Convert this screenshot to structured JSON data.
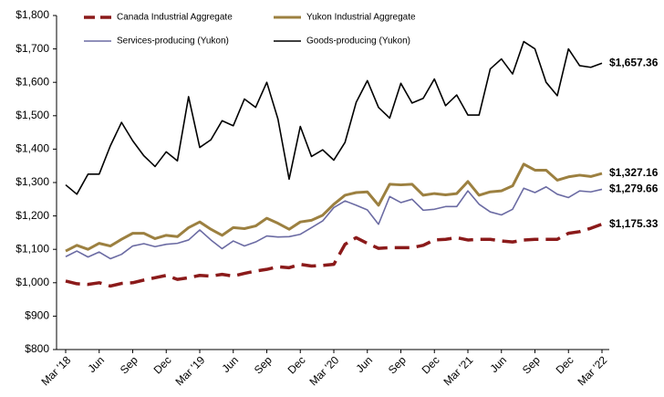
{
  "chart_data": {
    "type": "line",
    "categories": [
      "Mar '18",
      null,
      null,
      "Jun",
      null,
      null,
      "Sep",
      null,
      null,
      "Dec",
      null,
      null,
      "Mar '19",
      null,
      null,
      "Jun",
      null,
      null,
      "Sep",
      null,
      null,
      "Dec",
      null,
      null,
      "Mar '20",
      null,
      null,
      "Jun",
      null,
      null,
      "Sep",
      null,
      null,
      "Dec",
      null,
      null,
      "Mar '21",
      null,
      null,
      "Jun",
      null,
      null,
      "Sep",
      null,
      null,
      "Dec",
      null,
      null,
      "Mar '22"
    ],
    "series": [
      {
        "name": "Canada Industrial Aggregate",
        "color": "#8b1a1a",
        "dashed": true,
        "values": [
          1005,
          997,
          995,
          1000,
          990,
          998,
          1000,
          1008,
          1015,
          1022,
          1010,
          1015,
          1022,
          1020,
          1025,
          1020,
          1028,
          1035,
          1040,
          1048,
          1045,
          1055,
          1050,
          1052,
          1055,
          1115,
          1135,
          1118,
          1103,
          1105,
          1105,
          1105,
          1112,
          1128,
          1130,
          1135,
          1128,
          1130,
          1130,
          1125,
          1122,
          1128,
          1130,
          1130,
          1130,
          1148,
          1153,
          1163,
          1175.33
        ],
        "value_labels": [
          null,
          null,
          null,
          null,
          null,
          null,
          null,
          null,
          null,
          null,
          null,
          null,
          null,
          null,
          null,
          null,
          null,
          null,
          null,
          null,
          null,
          null,
          null,
          null,
          null,
          null,
          null,
          null,
          null,
          null,
          null,
          null,
          null,
          null,
          null,
          null,
          null,
          null,
          null,
          null,
          null,
          null,
          null,
          null,
          null,
          null,
          null,
          null,
          "$1,175.33"
        ]
      },
      {
        "name": "Yukon Industrial Aggregate",
        "color": "#9c8040",
        "dashed": false,
        "values": [
          1095,
          1112,
          1100,
          1118,
          1110,
          1130,
          1148,
          1148,
          1132,
          1142,
          1138,
          1165,
          1182,
          1160,
          1142,
          1165,
          1162,
          1170,
          1193,
          1178,
          1160,
          1182,
          1187,
          1202,
          1235,
          1262,
          1270,
          1272,
          1232,
          1295,
          1293,
          1295,
          1262,
          1267,
          1263,
          1267,
          1303,
          1262,
          1272,
          1275,
          1290,
          1355,
          1337,
          1337,
          1307,
          1317,
          1322,
          1318,
          1327.16
        ],
        "value_labels": [
          null,
          null,
          null,
          null,
          null,
          null,
          null,
          null,
          null,
          null,
          null,
          null,
          null,
          null,
          null,
          null,
          null,
          null,
          null,
          null,
          null,
          null,
          null,
          null,
          null,
          null,
          null,
          null,
          null,
          null,
          null,
          null,
          null,
          null,
          null,
          null,
          null,
          null,
          null,
          null,
          null,
          null,
          null,
          null,
          null,
          null,
          null,
          null,
          "$1,327.16"
        ]
      },
      {
        "name": "Services-producing (Yukon)",
        "color": "#6b6ba3",
        "dashed": false,
        "values": [
          1078,
          1095,
          1077,
          1092,
          1072,
          1085,
          1110,
          1117,
          1108,
          1115,
          1118,
          1128,
          1158,
          1128,
          1102,
          1125,
          1110,
          1122,
          1140,
          1137,
          1138,
          1145,
          1165,
          1185,
          1225,
          1245,
          1232,
          1218,
          1175,
          1258,
          1240,
          1250,
          1217,
          1220,
          1228,
          1228,
          1275,
          1235,
          1212,
          1203,
          1220,
          1283,
          1270,
          1287,
          1265,
          1255,
          1275,
          1272,
          1279.66
        ],
        "value_labels": [
          null,
          null,
          null,
          null,
          null,
          null,
          null,
          null,
          null,
          null,
          null,
          null,
          null,
          null,
          null,
          null,
          null,
          null,
          null,
          null,
          null,
          null,
          null,
          null,
          null,
          null,
          null,
          null,
          null,
          null,
          null,
          null,
          null,
          null,
          null,
          null,
          null,
          null,
          null,
          null,
          null,
          null,
          null,
          null,
          null,
          null,
          null,
          null,
          "$1,279.66"
        ]
      },
      {
        "name": "Goods-producing (Yukon)",
        "color": "#000000",
        "dashed": false,
        "values": [
          1293,
          1265,
          1325,
          1325,
          1410,
          1480,
          1425,
          1380,
          1348,
          1392,
          1365,
          1557,
          1405,
          1428,
          1485,
          1470,
          1550,
          1525,
          1600,
          1490,
          1310,
          1468,
          1378,
          1398,
          1367,
          1420,
          1540,
          1605,
          1525,
          1493,
          1597,
          1538,
          1552,
          1610,
          1530,
          1562,
          1502,
          1502,
          1640,
          1670,
          1625,
          1722,
          1700,
          1600,
          1560,
          1700,
          1650,
          1645,
          1657.36
        ],
        "value_labels": [
          null,
          null,
          null,
          null,
          null,
          null,
          null,
          null,
          null,
          null,
          null,
          null,
          null,
          null,
          null,
          null,
          null,
          null,
          null,
          null,
          null,
          null,
          null,
          null,
          null,
          null,
          null,
          null,
          null,
          null,
          null,
          null,
          null,
          null,
          null,
          null,
          null,
          null,
          null,
          null,
          null,
          null,
          null,
          null,
          null,
          null,
          null,
          null,
          "$1,657.36"
        ]
      }
    ],
    "ylim": [
      800,
      1800
    ],
    "yticks": [
      {
        "value": 800,
        "label": "$800"
      },
      {
        "value": 900,
        "label": "$900"
      },
      {
        "value": 1000,
        "label": "$1,000"
      },
      {
        "value": 1100,
        "label": "$1,100"
      },
      {
        "value": 1200,
        "label": "$1,200"
      },
      {
        "value": 1300,
        "label": "$1,300"
      },
      {
        "value": 1400,
        "label": "$1,400"
      },
      {
        "value": 1500,
        "label": "$1,500"
      },
      {
        "value": 1600,
        "label": "$1,600"
      },
      {
        "value": 1700,
        "label": "$1,700"
      },
      {
        "value": 1800,
        "label": "$1,800"
      }
    ],
    "grid": false
  }
}
